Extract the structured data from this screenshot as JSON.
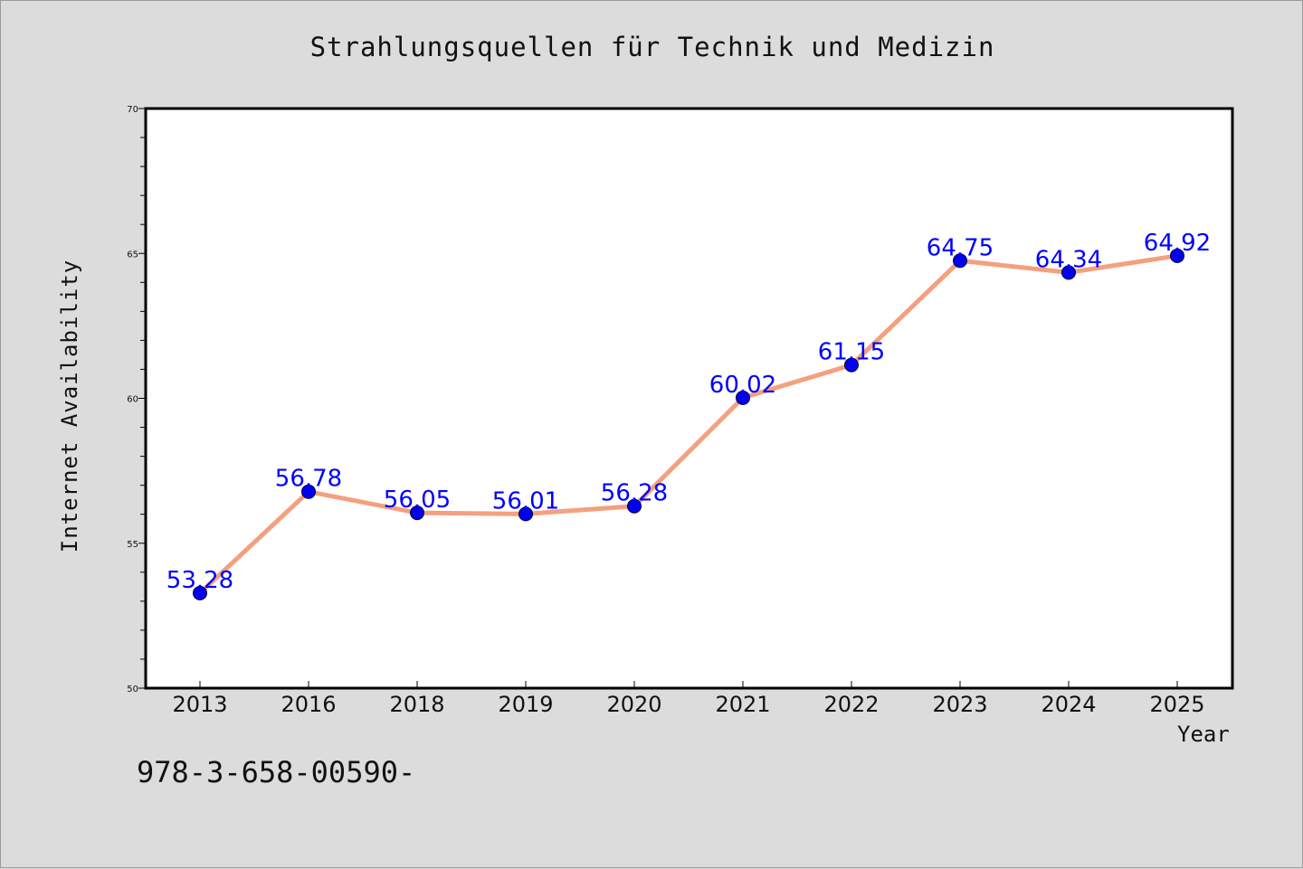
{
  "chart_data": {
    "type": "line",
    "title": "Strahlungsquellen für Technik und Medizin",
    "xlabel": "Year",
    "ylabel": "Internet Availability",
    "x": [
      "2013",
      "2016",
      "2018",
      "2019",
      "2020",
      "2021",
      "2022",
      "2023",
      "2024",
      "2025"
    ],
    "series": [
      {
        "values": [
          53.28,
          56.78,
          56.05,
          56.01,
          56.28,
          60.02,
          61.15,
          64.75,
          64.34,
          64.92
        ],
        "data_labels": [
          "53.28",
          "56.78",
          "56.05",
          "56.01",
          "56.28",
          "60.02",
          "61.15",
          "64.75",
          "64.34",
          "64.92"
        ],
        "line_color": "#f4a07e",
        "marker_color": "#0000ee"
      }
    ],
    "ylim": [
      50,
      70
    ],
    "yticks": [
      50,
      55,
      60,
      65,
      70
    ],
    "ytick_labels": [
      "50",
      "55",
      "60",
      "65",
      "70"
    ],
    "grid": false,
    "label_color": "#0000ff"
  },
  "footer": {
    "isbn": "978-3-658-00590-"
  },
  "colors": {
    "background": "#dcdcdc",
    "plot_background": "#ffffff"
  }
}
